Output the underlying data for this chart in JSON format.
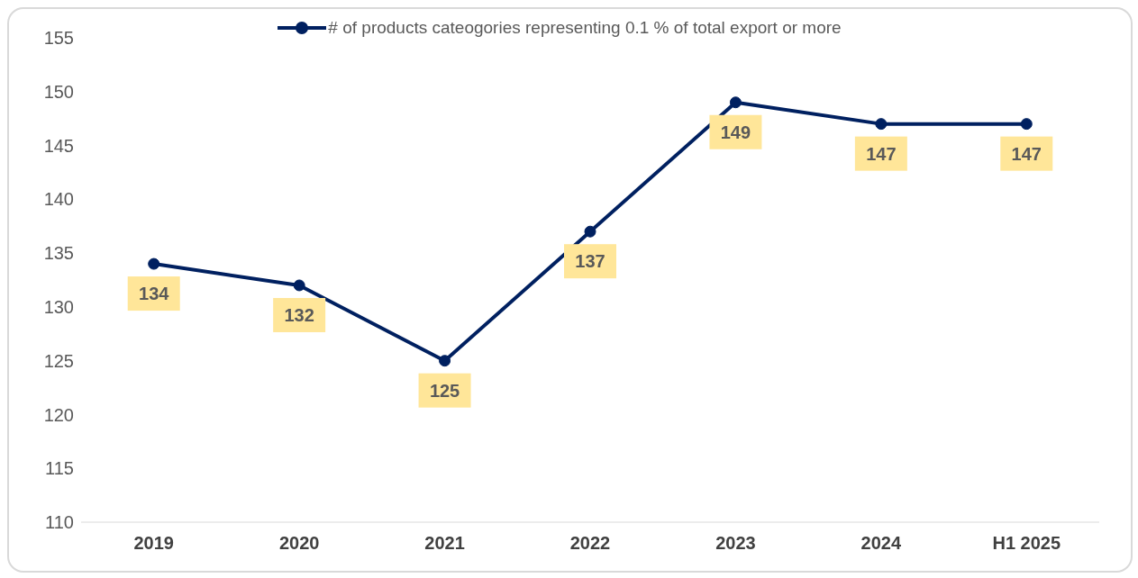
{
  "chart_data": {
    "type": "line",
    "categories": [
      "2019",
      "2020",
      "2021",
      "2022",
      "2023",
      "2024",
      "H1 2025"
    ],
    "series": [
      {
        "name": "# of products cateogories representing 0.1 % of total export or more",
        "color": "#002060",
        "values": [
          134,
          132,
          125,
          137,
          149,
          147,
          147
        ]
      }
    ],
    "ylim": [
      110,
      155
    ],
    "yticks": [
      110,
      115,
      120,
      125,
      130,
      135,
      140,
      145,
      150,
      155
    ],
    "grid": false,
    "legend": "top",
    "marker": "circle",
    "line_style": "solid",
    "data_labels": true
  }
}
